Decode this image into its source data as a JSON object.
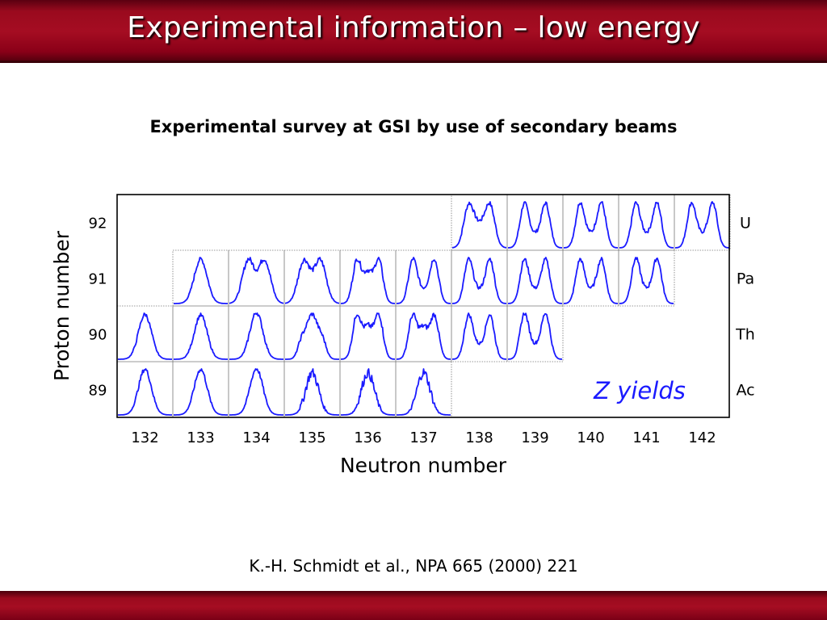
{
  "slide": {
    "title": "Experimental information – low energy",
    "subtitle": "Experimental survey at GSI by use of secondary beams",
    "citation": "K.-H. Schmidt et al., NPA 665 (2000) 221"
  },
  "colors": {
    "title_bar": "#a50d22",
    "curve": "#1a1aff",
    "annotation": "#1a1aff"
  },
  "chart_data": {
    "type": "grid-of-distributions",
    "xlabel": "Neutron number",
    "ylabel": "Proton number",
    "annotation": "Z yields",
    "x_ticks": [
      "132",
      "133",
      "134",
      "135",
      "136",
      "137",
      "138",
      "139",
      "140",
      "141",
      "142"
    ],
    "y_ticks": [
      "92",
      "91",
      "90",
      "89"
    ],
    "element_labels": [
      "U",
      "Pa",
      "Th",
      "Ac"
    ],
    "cells": [
      {
        "Z": 92,
        "N": 138,
        "shape": "double-hump, valley filled"
      },
      {
        "Z": 92,
        "N": 139,
        "shape": "double-hump"
      },
      {
        "Z": 92,
        "N": 140,
        "shape": "double-hump"
      },
      {
        "Z": 92,
        "N": 141,
        "shape": "double-hump"
      },
      {
        "Z": 92,
        "N": 142,
        "shape": "double-hump"
      },
      {
        "Z": 91,
        "N": 133,
        "shape": "single-hump"
      },
      {
        "Z": 91,
        "N": 134,
        "shape": "broad flat-top"
      },
      {
        "Z": 91,
        "N": 135,
        "shape": "broad flat-top"
      },
      {
        "Z": 91,
        "N": 136,
        "shape": "triple-hump"
      },
      {
        "Z": 91,
        "N": 137,
        "shape": "double-hump"
      },
      {
        "Z": 91,
        "N": 138,
        "shape": "double-hump"
      },
      {
        "Z": 91,
        "N": 139,
        "shape": "double-hump"
      },
      {
        "Z": 91,
        "N": 140,
        "shape": "double-hump"
      },
      {
        "Z": 91,
        "N": 141,
        "shape": "double-hump"
      },
      {
        "Z": 90,
        "N": 132,
        "shape": "single-hump"
      },
      {
        "Z": 90,
        "N": 133,
        "shape": "single-hump"
      },
      {
        "Z": 90,
        "N": 134,
        "shape": "single-hump"
      },
      {
        "Z": 90,
        "N": 135,
        "shape": "single-hump with shoulders"
      },
      {
        "Z": 90,
        "N": 136,
        "shape": "triple-hump"
      },
      {
        "Z": 90,
        "N": 137,
        "shape": "triple-hump"
      },
      {
        "Z": 90,
        "N": 138,
        "shape": "double-hump"
      },
      {
        "Z": 90,
        "N": 139,
        "shape": "double-hump"
      },
      {
        "Z": 89,
        "N": 132,
        "shape": "single-hump"
      },
      {
        "Z": 89,
        "N": 133,
        "shape": "single-hump"
      },
      {
        "Z": 89,
        "N": 134,
        "shape": "single-hump"
      },
      {
        "Z": 89,
        "N": 135,
        "shape": "single-hump, noisy"
      },
      {
        "Z": 89,
        "N": 136,
        "shape": "single-hump, noisy"
      },
      {
        "Z": 89,
        "N": 137,
        "shape": "single-hump, noisy"
      }
    ]
  }
}
